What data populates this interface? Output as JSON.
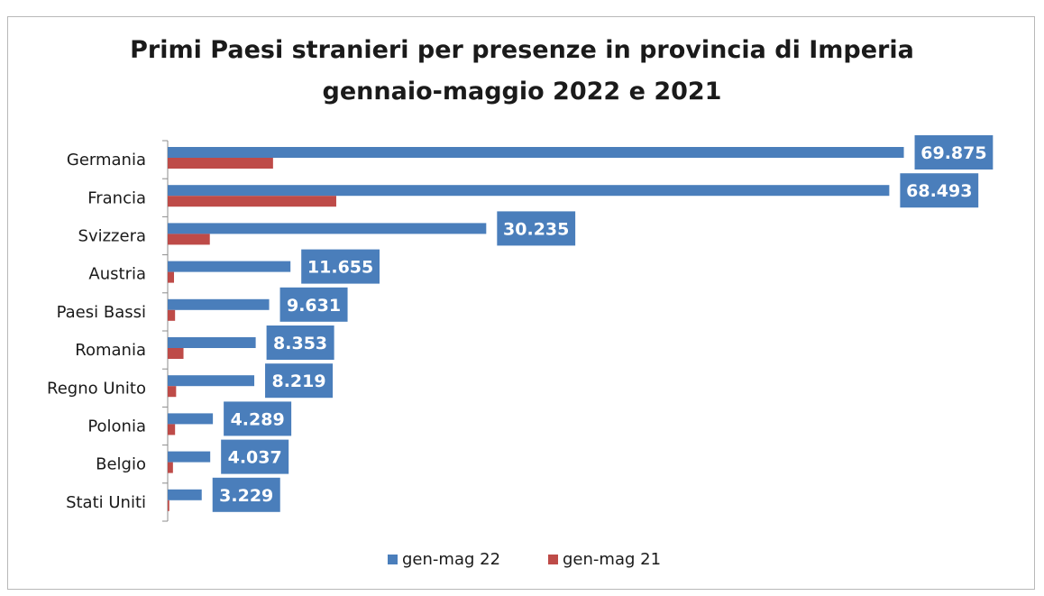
{
  "chart_data": {
    "type": "bar",
    "orientation": "horizontal",
    "title": "Primi Paesi stranieri per presenze in provincia di Imperia",
    "subtitle": "gennaio-maggio  2022 e 2021",
    "categories": [
      "Germania",
      "Francia",
      "Svizzera",
      "Austria",
      "Paesi Bassi",
      "Romania",
      "Regno Unito",
      "Polonia",
      "Belgio",
      "Stati Uniti"
    ],
    "series": [
      {
        "name": "gen-mag 22",
        "color": "#4a7ebb",
        "values": [
          69875,
          68493,
          30235,
          11655,
          9631,
          8353,
          8219,
          4289,
          4037,
          3229
        ],
        "labels": [
          "69.875",
          "68.493",
          "30.235",
          "11.655",
          "9.631",
          "8.353",
          "8.219",
          "4.289",
          "4.037",
          "3.229"
        ]
      },
      {
        "name": "gen-mag 21",
        "color": "#be4b48",
        "values": [
          10000,
          16000,
          4000,
          600,
          700,
          1500,
          800,
          700,
          500,
          150
        ]
      }
    ],
    "xlim": [
      0,
      70000
    ],
    "grid": false,
    "legend": "bottom"
  }
}
